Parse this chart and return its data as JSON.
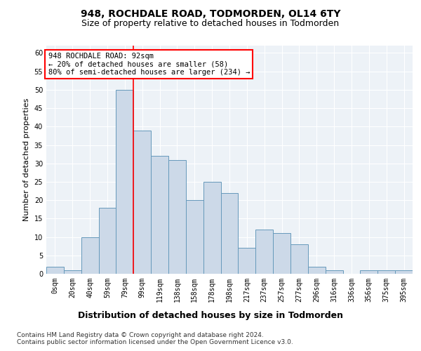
{
  "title": "948, ROCHDALE ROAD, TODMORDEN, OL14 6TY",
  "subtitle": "Size of property relative to detached houses in Todmorden",
  "xlabel": "Distribution of detached houses by size in Todmorden",
  "ylabel": "Number of detached properties",
  "bar_labels": [
    "0sqm",
    "20sqm",
    "40sqm",
    "59sqm",
    "79sqm",
    "99sqm",
    "119sqm",
    "138sqm",
    "158sqm",
    "178sqm",
    "198sqm",
    "217sqm",
    "237sqm",
    "257sqm",
    "277sqm",
    "296sqm",
    "316sqm",
    "336sqm",
    "356sqm",
    "375sqm",
    "395sqm"
  ],
  "bar_values": [
    2,
    1,
    10,
    18,
    50,
    39,
    32,
    31,
    20,
    25,
    22,
    7,
    12,
    11,
    8,
    2,
    1,
    0,
    1,
    1,
    1
  ],
  "bar_color": "#ccd9e8",
  "bar_edge_color": "#6699bb",
  "ylim": [
    0,
    62
  ],
  "yticks": [
    0,
    5,
    10,
    15,
    20,
    25,
    30,
    35,
    40,
    45,
    50,
    55,
    60
  ],
  "property_label": "948 ROCHDALE ROAD: 92sqm",
  "annotation_line1": "← 20% of detached houses are smaller (58)",
  "annotation_line2": "80% of semi-detached houses are larger (234) →",
  "vline_position": 4.5,
  "footer_line1": "Contains HM Land Registry data © Crown copyright and database right 2024.",
  "footer_line2": "Contains public sector information licensed under the Open Government Licence v3.0.",
  "background_color": "#edf2f7",
  "grid_color": "#ffffff",
  "title_fontsize": 10,
  "subtitle_fontsize": 9,
  "ylabel_fontsize": 8,
  "xlabel_fontsize": 9,
  "tick_fontsize": 7,
  "annotation_fontsize": 7.5,
  "footer_fontsize": 6.5
}
